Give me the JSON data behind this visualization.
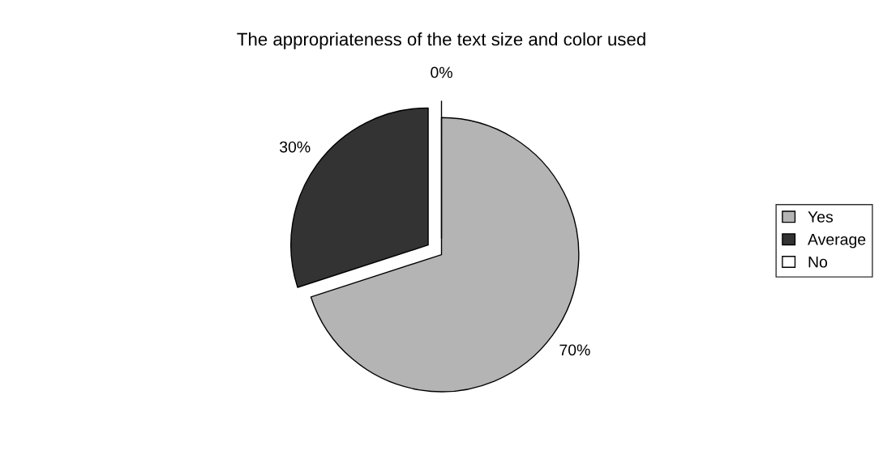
{
  "chart_data": {
    "type": "pie",
    "title": "The appropriateness of the text size and color used",
    "categories": [
      "Yes",
      "Average",
      "No"
    ],
    "values": [
      70,
      30,
      0
    ],
    "value_labels": [
      "70%",
      "30%",
      "0%"
    ],
    "colors": [
      "#b4b4b4",
      "#333333",
      "#ffffff"
    ],
    "legend": "right"
  }
}
